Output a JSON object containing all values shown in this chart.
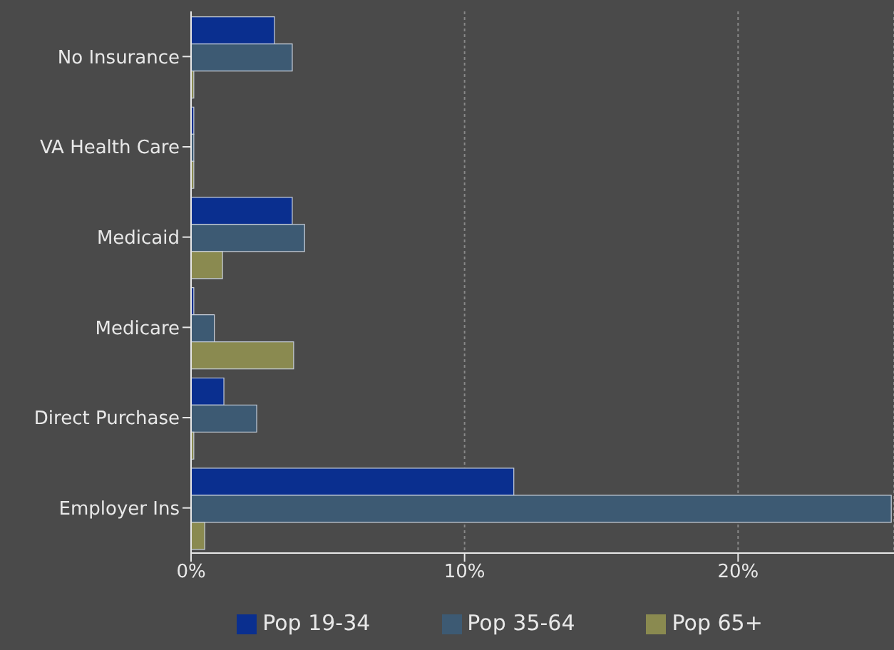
{
  "chart_data": {
    "type": "bar",
    "orientation": "horizontal",
    "categories": [
      "No Insurance",
      "VA Health Care",
      "Medicaid",
      "Medicare",
      "Direct Purchase",
      "Employer Ins"
    ],
    "series": [
      {
        "name": "Pop 19-34",
        "color": "#0a2f8f",
        "values": [
          3.05,
          0.1,
          3.7,
          0.1,
          1.2,
          11.8
        ]
      },
      {
        "name": "Pop 35-64",
        "color": "#3d5a73",
        "values": [
          3.7,
          0.1,
          4.15,
          0.85,
          2.4,
          25.6
        ]
      },
      {
        "name": "Pop 65+",
        "color": "#8a8a50",
        "values": [
          0.1,
          0.1,
          1.15,
          3.75,
          0.1,
          0.5
        ]
      }
    ],
    "xlim": [
      0,
      25.7
    ],
    "xticks": [
      {
        "value": 0,
        "label": "0%"
      },
      {
        "value": 10,
        "label": "10%"
      },
      {
        "value": 20,
        "label": "20%"
      }
    ],
    "grid": "x",
    "legend": "bottom"
  }
}
